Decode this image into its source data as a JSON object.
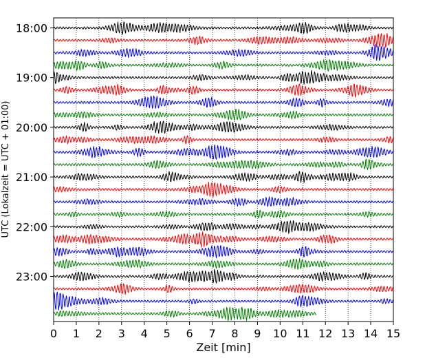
{
  "chart_data": {
    "type": "line",
    "xlabel": "Zeit  [min]",
    "ylabel": "UTC (Lokalzeit = UTC + 01:00)",
    "xlim": [
      0,
      15
    ],
    "x_ticks": [
      "0",
      "1",
      "2",
      "3",
      "4",
      "5",
      "6",
      "7",
      "8",
      "9",
      "10",
      "11",
      "12",
      "13",
      "14",
      "15"
    ],
    "y_ticks": [
      "18:00",
      "19:00",
      "20:00",
      "21:00",
      "22:00",
      "23:00"
    ],
    "grid": "vertical dotted",
    "row_interval_minutes": 15,
    "rows": 24,
    "row_colors": [
      "#000000",
      "#ff0000",
      "#0000ff",
      "#008000"
    ],
    "series": [
      {
        "start": "18:00",
        "duration_min": 15,
        "color": "#000000"
      },
      {
        "start": "18:15",
        "duration_min": 15,
        "color": "#ff0000"
      },
      {
        "start": "18:30",
        "duration_min": 15,
        "color": "#0000ff"
      },
      {
        "start": "18:45",
        "duration_min": 15,
        "color": "#008000"
      },
      {
        "start": "19:00",
        "duration_min": 15,
        "color": "#000000"
      },
      {
        "start": "19:15",
        "duration_min": 15,
        "color": "#ff0000"
      },
      {
        "start": "19:30",
        "duration_min": 15,
        "color": "#0000ff"
      },
      {
        "start": "19:45",
        "duration_min": 15,
        "color": "#008000"
      },
      {
        "start": "20:00",
        "duration_min": 15,
        "color": "#000000"
      },
      {
        "start": "20:15",
        "duration_min": 15,
        "color": "#ff0000"
      },
      {
        "start": "20:30",
        "duration_min": 15,
        "color": "#0000ff"
      },
      {
        "start": "20:45",
        "duration_min": 15,
        "color": "#008000"
      },
      {
        "start": "21:00",
        "duration_min": 15,
        "color": "#000000"
      },
      {
        "start": "21:15",
        "duration_min": 15,
        "color": "#ff0000"
      },
      {
        "start": "21:30",
        "duration_min": 15,
        "color": "#0000ff"
      },
      {
        "start": "21:45",
        "duration_min": 15,
        "color": "#008000"
      },
      {
        "start": "22:00",
        "duration_min": 15,
        "color": "#000000"
      },
      {
        "start": "22:15",
        "duration_min": 15,
        "color": "#ff0000"
      },
      {
        "start": "22:30",
        "duration_min": 15,
        "color": "#0000ff"
      },
      {
        "start": "22:45",
        "duration_min": 15,
        "color": "#008000"
      },
      {
        "start": "23:00",
        "duration_min": 15,
        "color": "#000000"
      },
      {
        "start": "23:15",
        "duration_min": 15,
        "color": "#ff0000"
      },
      {
        "start": "23:30",
        "duration_min": 15,
        "color": "#0000ff"
      },
      {
        "start": "23:45",
        "duration_min": 11.6,
        "color": "#008000"
      }
    ]
  }
}
